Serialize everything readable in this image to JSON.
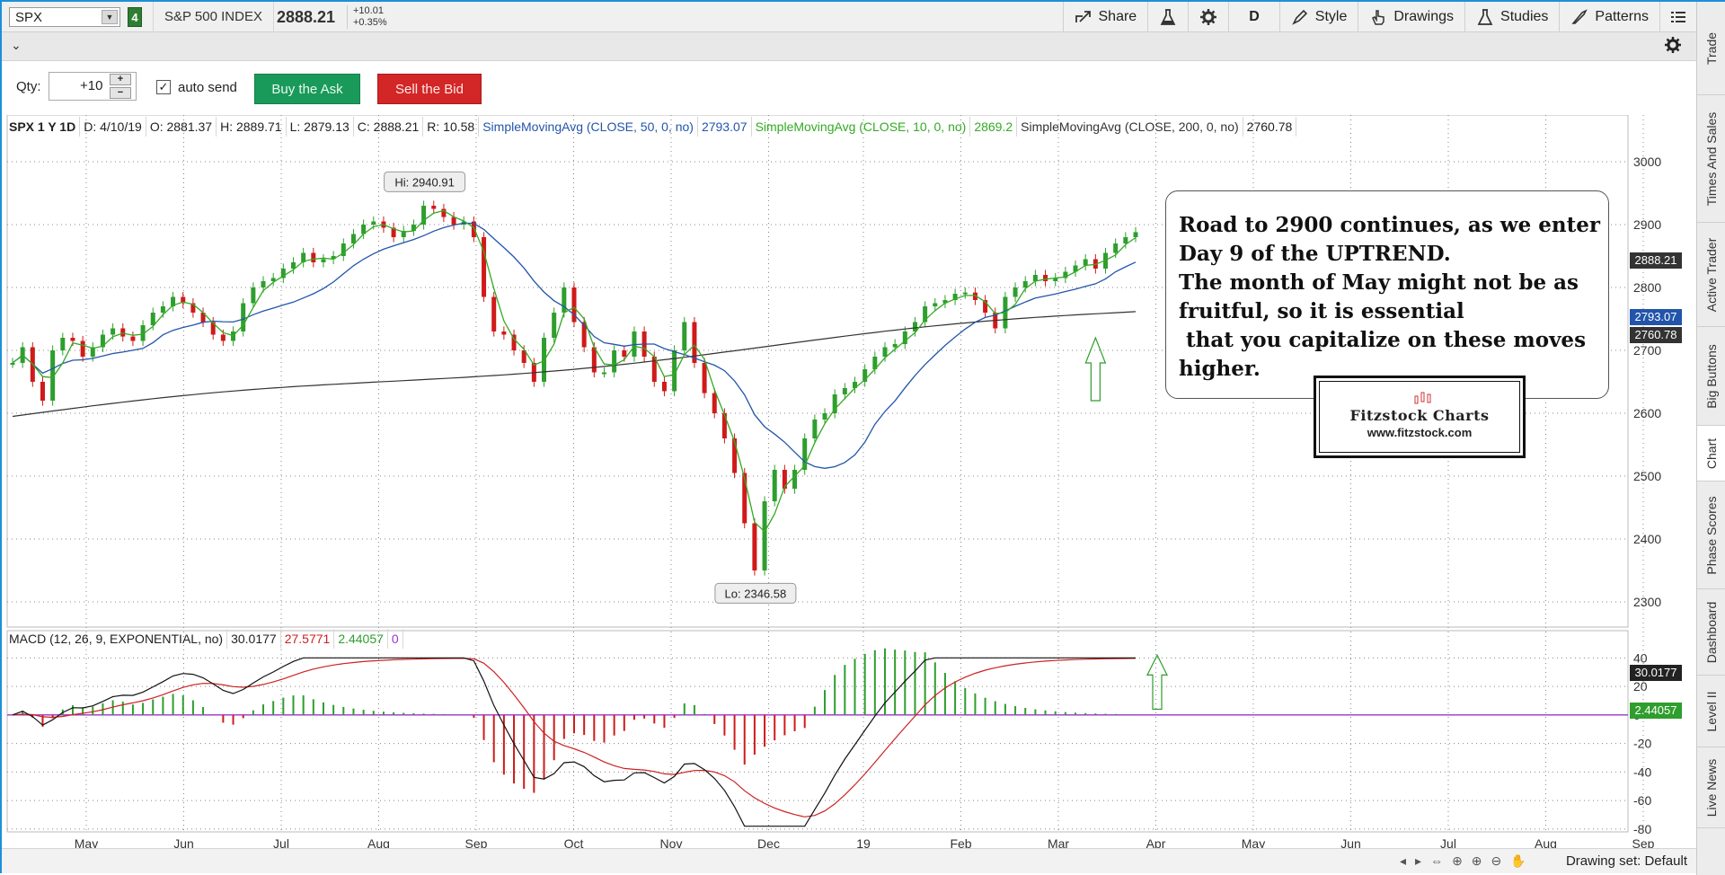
{
  "toolbar": {
    "symbol": "SPX",
    "link_group": "4",
    "description": "S&P 500 INDEX",
    "last_price": "2888.21",
    "net_change": "+10.01",
    "pct_change": "+0.35%",
    "share_label": "Share",
    "timeframe_label": "D",
    "style_label": "Style",
    "drawings_label": "Drawings",
    "studies_label": "Studies",
    "patterns_label": "Patterns"
  },
  "order": {
    "qty_label": "Qty:",
    "qty_value": "+10",
    "auto_send_label": "auto send",
    "auto_send_checked": true,
    "buy_label": "Buy the Ask",
    "sell_label": "Sell the Bid"
  },
  "side_tabs": [
    "Trade",
    "Times And Sales",
    "Active Trader",
    "Big Buttons",
    "Chart",
    "Phase Scores",
    "Dashboard",
    "Level II",
    "Live News"
  ],
  "active_side_tab": "Chart",
  "price_header": {
    "title": "SPX 1 Y 1D",
    "date": "D: 4/10/19",
    "open": "O: 2881.37",
    "high": "H: 2889.71",
    "low": "L: 2879.13",
    "close": "C: 2888.21",
    "range": "R: 10.58",
    "sma50_label": "SimpleMovingAvg (CLOSE, 50, 0, no)",
    "sma50_value": "2793.07",
    "sma10_label": "SimpleMovingAvg (CLOSE, 10, 0, no)",
    "sma10_value": "2869.2",
    "sma200_label": "SimpleMovingAvg (CLOSE, 200, 0, no)",
    "sma200_value": "2760.78"
  },
  "macd_header": {
    "label": "MACD (12, 26, 9, EXPONENTIAL, no)",
    "value": "30.0177",
    "avg": "27.5771",
    "diff": "2.44057",
    "zero": "0"
  },
  "annotation": {
    "lines": [
      "Road to 2900 continues, as we enter",
      "Day 9 of the UPTREND.",
      "The month of May might not be as",
      "fruitful, so it is essential",
      " that you capitalize on these moves",
      "higher."
    ]
  },
  "logo": {
    "name": "Fitzstock Charts",
    "url": "www.fitzstock.com"
  },
  "callouts": {
    "high": "Hi: 2940.91",
    "low": "Lo: 2346.58"
  },
  "price_tags": {
    "last": "2888.21",
    "sma50": "2793.07",
    "sma200": "2760.78",
    "macd": "30.0177",
    "diff": "2.44057"
  },
  "bottom": {
    "drawing_set": "Drawing set: Default"
  },
  "colors": {
    "up": "#2e9e2e",
    "down": "#d01a1a",
    "sma50": "#2255aa",
    "sma10": "#33aa22",
    "sma200": "#333333",
    "macd_line": "#111111",
    "macd_avg": "#cc2222",
    "zero_line": "#9933cc",
    "buy": "#1a9a5a",
    "sell": "#d32626"
  },
  "chart_data": {
    "type": "line",
    "price_axis_ticks": [
      3000,
      2900,
      2800,
      2700,
      2600,
      2500,
      2400,
      2300
    ],
    "macd_axis_ticks": [
      40,
      20,
      0,
      -20,
      -40,
      -60,
      -80
    ],
    "x_tick_labels": [
      "May",
      "Jun",
      "Jul",
      "Aug",
      "Sep",
      "Oct",
      "Nov",
      "Dec",
      "19",
      "Feb",
      "Mar",
      "Apr",
      "May",
      "Jun",
      "Jul",
      "Aug",
      "Sep"
    ],
    "ylim": [
      2280,
      3040
    ],
    "macd_ylim": [
      -82,
      44
    ],
    "close_series": [
      2680,
      2705,
      2650,
      2620,
      2700,
      2720,
      2715,
      2690,
      2705,
      2725,
      2735,
      2722,
      2715,
      2740,
      2760,
      2770,
      2785,
      2775,
      2760,
      2745,
      2725,
      2715,
      2730,
      2775,
      2800,
      2810,
      2815,
      2830,
      2840,
      2855,
      2840,
      2845,
      2850,
      2870,
      2885,
      2900,
      2905,
      2895,
      2880,
      2890,
      2900,
      2930,
      2925,
      2912,
      2900,
      2905,
      2880,
      2785,
      2730,
      2725,
      2700,
      2680,
      2650,
      2720,
      2760,
      2800,
      2745,
      2705,
      2665,
      2665,
      2700,
      2690,
      2730,
      2690,
      2650,
      2635,
      2700,
      2745,
      2680,
      2632,
      2600,
      2560,
      2505,
      2425,
      2350,
      2460,
      2510,
      2480,
      2510,
      2560,
      2590,
      2600,
      2630,
      2640,
      2650,
      2670,
      2690,
      2705,
      2710,
      2730,
      2745,
      2770,
      2775,
      2780,
      2790,
      2792,
      2780,
      2760,
      2735,
      2785,
      2800,
      2810,
      2820,
      2810,
      2815,
      2825,
      2835,
      2845,
      2830,
      2855,
      2870,
      2880,
      2888
    ],
    "high_label": 2940.91,
    "low_label": 2346.58,
    "sma50_last": 2793.07,
    "sma10_last": 2869.2,
    "sma200_last": 2760.78,
    "macd_last": 30.0177,
    "macd_avg_last": 27.5771,
    "macd_diff_last": 2.44057
  }
}
